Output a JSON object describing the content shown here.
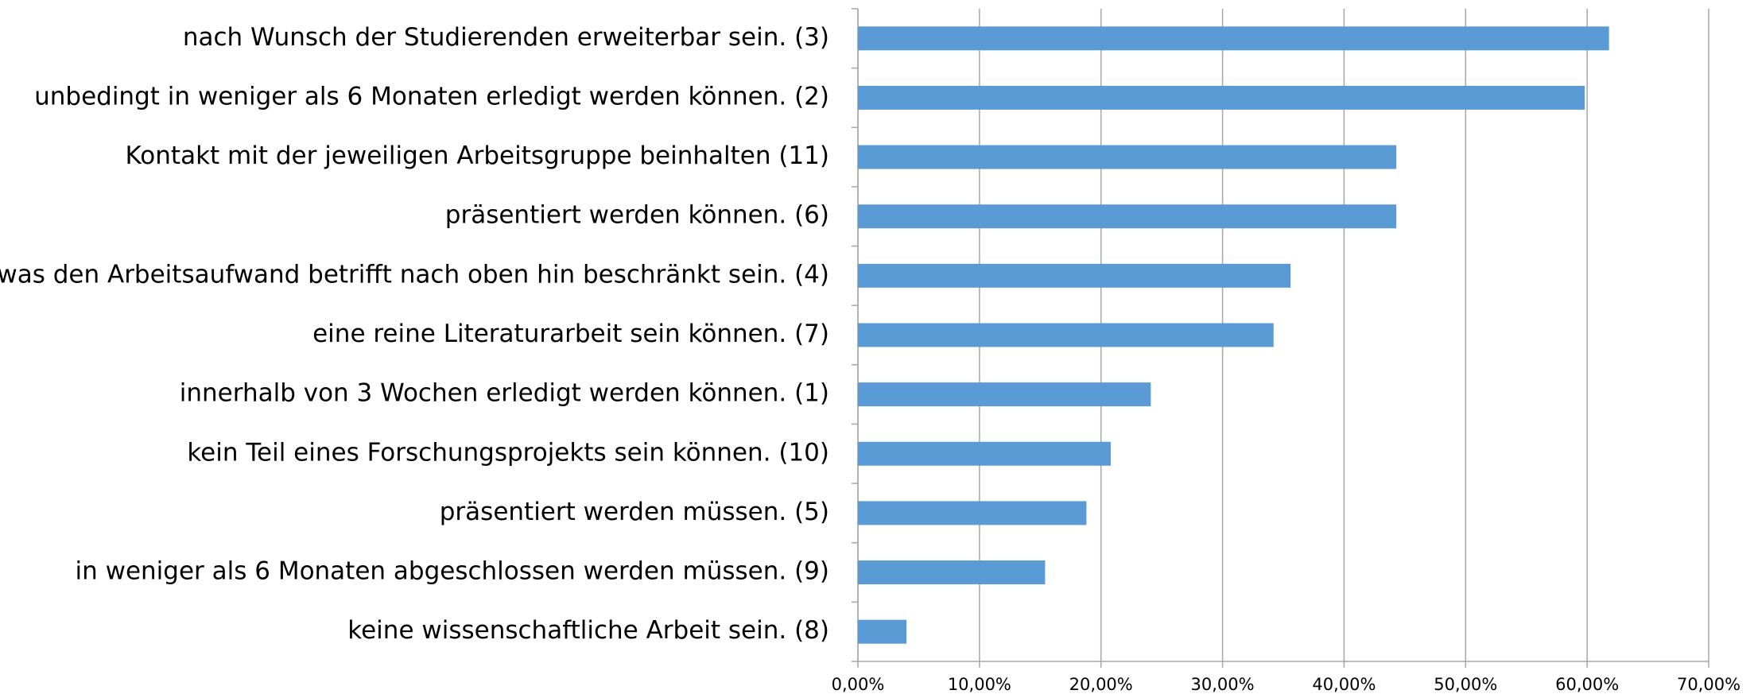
{
  "chart_data": {
    "type": "hbar",
    "categories": [
      "nach Wunsch der Studierenden erweiterbar sein. (3)",
      "unbedingt in weniger als 6 Monaten erledigt werden können. (2)",
      "Kontakt mit der jeweiligen Arbeitsgruppe beinhalten (11)",
      "präsentiert werden können. (6)",
      "was den Arbeitsaufwand betrifft nach oben hin beschränkt sein. (4)",
      "eine reine Literaturarbeit sein können. (7)",
      "innerhalb von 3 Wochen erledigt werden können. (1)",
      "kein Teil eines Forschungsprojekts sein können. (10)",
      "präsentiert werden müssen. (5)",
      "in weniger als 6 Monaten abgeschlossen werden müssen. (9)",
      "keine wissenschaftliche Arbeit sein. (8)"
    ],
    "values": [
      61.8,
      59.8,
      44.3,
      44.3,
      35.6,
      34.2,
      24.1,
      20.8,
      18.8,
      15.4,
      4.0
    ],
    "color": "#5b9bd5",
    "xlim": [
      0,
      70
    ],
    "xticks": [
      {
        "value": 0,
        "label": "0,00%"
      },
      {
        "value": 10,
        "label": "10,00%"
      },
      {
        "value": 20,
        "label": "20,00%"
      },
      {
        "value": 30,
        "label": "30,00%"
      },
      {
        "value": 40,
        "label": "40,00%"
      },
      {
        "value": 50,
        "label": "50,00%"
      },
      {
        "value": 60,
        "label": "60,00%"
      },
      {
        "value": 70,
        "label": "70,00%"
      }
    ],
    "grid": true
  }
}
